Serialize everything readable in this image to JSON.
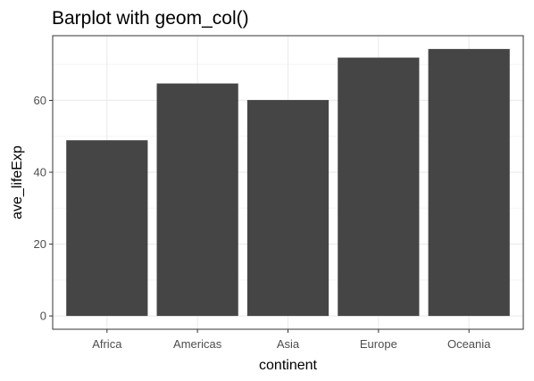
{
  "chart_data": {
    "type": "bar",
    "title": "Barplot with geom_col()",
    "xlabel": "continent",
    "ylabel": "ave_lifeExp",
    "categories": [
      "Africa",
      "Americas",
      "Asia",
      "Europe",
      "Oceania"
    ],
    "values": [
      48.9,
      64.7,
      60.1,
      71.9,
      74.3
    ],
    "ylim": [
      -3.7,
      78.0
    ],
    "yticks": [
      0,
      20,
      40,
      60
    ],
    "ytick_labels": [
      "0",
      "20",
      "40",
      "60"
    ],
    "grid": true,
    "legend": "none",
    "colors": {
      "bar": "#454545",
      "panel_border": "#333333",
      "grid_major": "#ebebeb",
      "grid_minor": "#f5f5f5",
      "background": "#ffffff"
    }
  }
}
